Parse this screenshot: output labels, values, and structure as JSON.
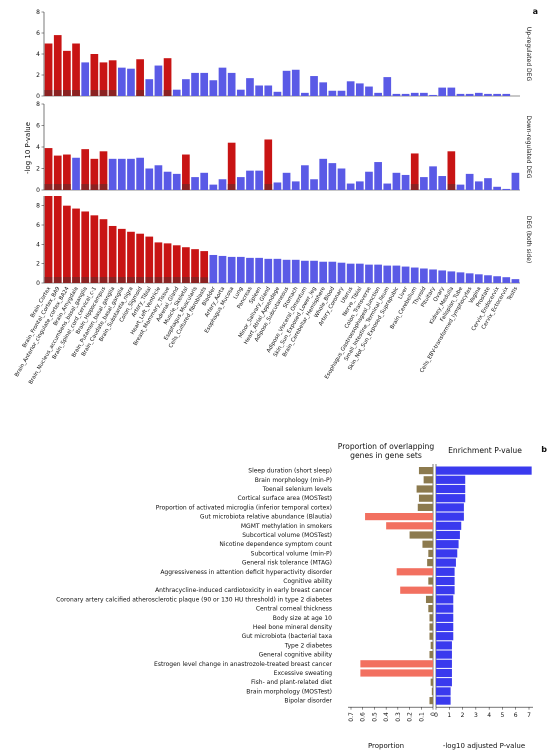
{
  "panel_a": {
    "panel_label": "a",
    "y_axis_label": "-log 10 P-value",
    "tissues": [
      "Brain_Cortex",
      "Brain_Frontal_Cortex_BA9",
      "Brain_Anterior_cingulate_cortex_BA24",
      "Brain_Amygdala",
      "Brain_Nucleus_accumbens_basal_ganglia",
      "Brain_Spinal_cord_cervical_c-1",
      "Brain_Hippocampus",
      "Brain_Putamen_basal_ganglia",
      "Brain_Caudate_basal_ganglia",
      "Brain_Substantia_nigra",
      "Colon_Sigmoid",
      "Artery_Tibial",
      "Heart_Left_Ventricle",
      "Breast_Mammary_Tissue",
      "Adrenal_Gland",
      "Muscle_Skeletal",
      "Esophagus_Muscularis",
      "Cells_Cultured_fibroblasts",
      "Bladder",
      "Artery_Aorta",
      "Esophagus_Mucosa",
      "Lung",
      "Pancreas",
      "Spleen",
      "Minor_Salivary_Gland",
      "Heart_Atrial_Appendage",
      "Adipose_Subcutaneous",
      "Stomach",
      "Adipose_Visceral_Omentum",
      "Skin_Sun_Exposed_Lower_leg",
      "Brain_Cerebellar_Hemisphere",
      "Whole_Blood",
      "Artery_Coronary",
      "Uterus",
      "Nerve_Tibial",
      "Colon_Transverse",
      "Esophagus_Gastroesophageal_Junction",
      "Small_Intestine_Terminal_Ileum",
      "Skin_Not_Sun_Exposed_Suprapubic",
      "Liver",
      "Brain_Cerebellum",
      "Thyroid",
      "Pituitary",
      "Ovary",
      "Kidney_Medulla",
      "Fallopian_Tube",
      "Cells_EBV-transformed_lymphocytes",
      "Vagina",
      "Prostate",
      "Cervix_Endocervix",
      "Cervix_Ectocervix",
      "Testis"
    ],
    "subplots": [
      {
        "name": "Up-regulated DEG",
        "ylim": [
          0,
          8
        ],
        "yticks": [
          0,
          2,
          4,
          6,
          8
        ],
        "values": [
          5.0,
          5.8,
          4.3,
          5.0,
          3.2,
          4.0,
          3.2,
          3.4,
          2.7,
          2.6,
          3.5,
          1.6,
          2.9,
          3.6,
          0.6,
          1.6,
          2.2,
          2.2,
          1.5,
          2.7,
          2.2,
          0.6,
          1.7,
          1.0,
          1.0,
          0.4,
          2.4,
          2.5,
          0.3,
          1.9,
          1.3,
          0.5,
          0.5,
          1.4,
          1.2,
          0.9,
          0.3,
          1.8,
          0.2,
          0.2,
          0.3,
          0.3,
          0.1,
          0.8,
          0.8,
          0.2,
          0.2,
          0.3,
          0.2,
          0.2,
          0.2,
          0.0
        ],
        "significant": [
          true,
          true,
          true,
          true,
          false,
          true,
          true,
          true,
          false,
          false,
          true,
          false,
          false,
          true,
          false,
          false,
          false,
          false,
          false,
          false,
          false,
          false,
          false,
          false,
          false,
          false,
          false,
          false,
          false,
          false,
          false,
          false,
          false,
          false,
          false,
          false,
          false,
          false,
          false,
          false,
          false,
          false,
          false,
          false,
          false,
          false,
          false,
          false,
          false,
          false,
          false,
          false
        ]
      },
      {
        "name": "Down-regulated DEG",
        "ylim": [
          0,
          8
        ],
        "yticks": [
          0,
          2,
          4,
          6,
          8
        ],
        "values": [
          3.9,
          3.2,
          3.3,
          3.0,
          3.8,
          2.9,
          3.6,
          2.9,
          2.9,
          2.9,
          3.0,
          2.0,
          2.3,
          1.7,
          1.5,
          3.3,
          1.2,
          1.6,
          0.5,
          1.0,
          4.4,
          1.2,
          1.8,
          1.8,
          4.7,
          0.7,
          1.6,
          0.8,
          2.3,
          1.0,
          2.9,
          2.5,
          2.0,
          0.6,
          0.8,
          1.7,
          2.6,
          0.6,
          1.6,
          1.4,
          3.4,
          1.2,
          2.2,
          1.3,
          3.6,
          0.5,
          1.5,
          0.8,
          1.1,
          0.3,
          0.1,
          1.6
        ],
        "significant": [
          true,
          true,
          true,
          false,
          true,
          true,
          true,
          false,
          false,
          false,
          false,
          false,
          false,
          false,
          false,
          true,
          false,
          false,
          false,
          false,
          true,
          false,
          false,
          false,
          true,
          false,
          false,
          false,
          false,
          false,
          false,
          false,
          false,
          false,
          false,
          false,
          false,
          false,
          false,
          false,
          true,
          false,
          false,
          false,
          true,
          false,
          false,
          false,
          false,
          false,
          false,
          false
        ]
      },
      {
        "name": "DEG (both side)",
        "ylim": [
          0,
          9
        ],
        "yticks": [
          0,
          2,
          4,
          6,
          8
        ],
        "values": [
          9.6,
          9.1,
          8.0,
          7.7,
          7.4,
          7.0,
          6.6,
          5.9,
          5.6,
          5.3,
          5.1,
          4.8,
          4.2,
          4.1,
          3.9,
          3.7,
          3.5,
          3.3,
          2.9,
          2.8,
          2.7,
          2.7,
          2.6,
          2.6,
          2.5,
          2.5,
          2.4,
          2.4,
          2.3,
          2.3,
          2.2,
          2.2,
          2.1,
          2.0,
          2.0,
          1.9,
          1.9,
          1.8,
          1.8,
          1.7,
          1.6,
          1.5,
          1.4,
          1.3,
          1.2,
          1.1,
          1.0,
          0.9,
          0.8,
          0.7,
          0.6,
          0.4
        ],
        "significant": [
          true,
          true,
          true,
          true,
          true,
          true,
          true,
          true,
          true,
          true,
          true,
          true,
          true,
          true,
          true,
          true,
          true,
          true,
          false,
          false,
          false,
          false,
          false,
          false,
          false,
          false,
          false,
          false,
          false,
          false,
          false,
          false,
          false,
          false,
          false,
          false,
          false,
          false,
          false,
          false,
          false,
          false,
          false,
          false,
          false,
          false,
          false,
          false,
          false,
          false,
          false,
          false
        ]
      }
    ]
  },
  "panel_b": {
    "panel_label": "b",
    "left_header": "Proportion of overlapping genes in gene sets",
    "right_header": "Enrichment P-value",
    "left_xlabel": "Proportion",
    "right_xlabel": "-log10 adjusted P-value",
    "left_ticks": [
      "0.7",
      "0.6",
      "0.5",
      "0.4",
      "0.3",
      "0.2",
      "0.1",
      "0"
    ],
    "right_ticks": [
      "0",
      "1",
      "2",
      "3",
      "4",
      "5",
      "6",
      "7"
    ]
  },
  "chart_data": [
    {
      "type": "bar",
      "title": "",
      "panel": "a - Up-regulated DEG",
      "ylabel": "-log 10 P-value",
      "ylim": [
        0,
        8
      ],
      "categories_ref": "panel_a.tissues",
      "values_ref": "panel_a.subplots.0.values"
    },
    {
      "type": "bar",
      "title": "",
      "panel": "a - Down-regulated DEG",
      "ylabel": "-log 10 P-value",
      "ylim": [
        0,
        8
      ],
      "categories_ref": "panel_a.tissues",
      "values_ref": "panel_a.subplots.1.values"
    },
    {
      "type": "bar",
      "title": "",
      "panel": "a - DEG (both side)",
      "ylabel": "-log 10 P-value",
      "ylim": [
        0,
        9
      ],
      "categories_ref": "panel_a.tissues",
      "values_ref": "panel_a.subplots.2.values"
    },
    {
      "type": "bar",
      "orientation": "horizontal",
      "panel": "b",
      "categories": [
        "Sleep duration (short sleep)",
        "Brain morphology (min-P)",
        "Toenail selenium levels",
        "Cortical surface area (MOSTest)",
        "Proportion of activated microglia (inferior temporal cortex)",
        "Gut microbiota relative abundance (Blautia)",
        "MGMT methylation in smokers",
        "Subcortical volume (MOSTest)",
        "Nicotine dependence symptom count",
        "Subcortical volume (min-P)",
        "General risk tolerance (MTAG)",
        "Aggressiveness in attention deficit hyperactivity disorder",
        "Cognitive ability",
        "Anthracycline-induced cardiotoxicity in early breast cancer",
        "Coronary artery calcified atherosclerotic plaque (90 or 130 HU threshold) in type 2 diabetes",
        "Central corneal thickness",
        "Body size at age 10",
        "Heel bone mineral density",
        "Gut microbiota (bacterial taxa",
        "Type 2 diabetes",
        "General cognitive ability",
        "Estrogen level change in anastrozole-treated breast cancer",
        "Excessive sweating",
        "Fish- and plant-related diet",
        "Brain morphology (MOSTest)",
        "Bipolar disorder"
      ],
      "series": [
        {
          "name": "Proportion",
          "values": [
            0.12,
            0.08,
            0.14,
            0.12,
            0.13,
            0.58,
            0.4,
            0.2,
            0.09,
            0.04,
            0.05,
            0.31,
            0.04,
            0.28,
            0.06,
            0.04,
            0.03,
            0.03,
            0.03,
            0.02,
            0.03,
            0.62,
            0.62,
            0.02,
            0.01,
            0.03
          ]
        },
        {
          "name": "-log10 adjusted P-value",
          "values": [
            7.2,
            2.2,
            2.2,
            2.2,
            2.1,
            2.1,
            1.9,
            1.8,
            1.7,
            1.6,
            1.5,
            1.4,
            1.4,
            1.4,
            1.3,
            1.3,
            1.3,
            1.3,
            1.3,
            1.2,
            1.2,
            1.2,
            1.2,
            1.2,
            1.1,
            1.1
          ]
        }
      ],
      "xlim_left": [
        0,
        0.7
      ],
      "xlim_right": [
        0,
        7
      ]
    }
  ],
  "colors": {
    "significant_bar": "#c81414",
    "significant_bar_base": "#8b2222",
    "nonsig_bar": "#5a5ae6",
    "proportion_bar": "#f27060",
    "proportion_bar_dark": "#8c7a4e",
    "pvalue_bar": "#3a3aee"
  }
}
